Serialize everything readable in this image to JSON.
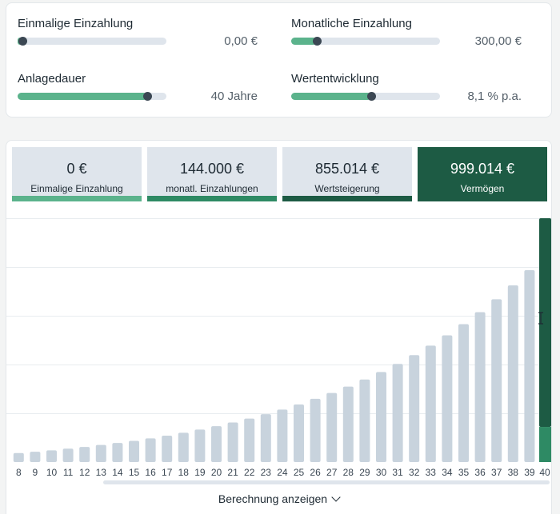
{
  "sliders": [
    {
      "label": "Einmalige Einzahlung",
      "value": "0,00 €",
      "level": 0.03
    },
    {
      "label": "Monatliche Einzahlung",
      "value": "300,00 €",
      "level": 0.17
    },
    {
      "label": "Anlagedauer",
      "value": "40 Jahre",
      "level": 0.87
    },
    {
      "label": "Wertentwicklung",
      "value": "8,1 % p.a.",
      "level": 0.54
    }
  ],
  "summary": [
    {
      "amount": "0 €",
      "caption": "Einmalige Einzahlung",
      "color": "#5bb38c"
    },
    {
      "amount": "144.000 €",
      "caption": "monatl. Einzahlungen",
      "color": "#2e8a64"
    },
    {
      "amount": "855.014 €",
      "caption": "Wertsteigerung",
      "color": "#1d5b44"
    },
    {
      "amount": "999.014 €",
      "caption": "Vermögen",
      "color": "#1d5b44"
    }
  ],
  "chart_data": {
    "type": "bar",
    "categories": [
      "8",
      "9",
      "10",
      "11",
      "12",
      "13",
      "14",
      "15",
      "16",
      "17",
      "18",
      "19",
      "20",
      "21",
      "22",
      "23",
      "24",
      "25",
      "26",
      "27",
      "28",
      "29",
      "30",
      "31",
      "32",
      "33",
      "34",
      "35",
      "36",
      "37",
      "38",
      "39",
      "40"
    ],
    "values": [
      37000,
      42000,
      48000,
      55000,
      62000,
      70000,
      78000,
      87000,
      97000,
      108000,
      120000,
      133000,
      147000,
      162000,
      178000,
      196000,
      215000,
      236000,
      259000,
      283000,
      309000,
      338000,
      369000,
      402000,
      438000,
      477000,
      519000,
      565000,
      614000,
      667000,
      724000,
      786000,
      999014
    ],
    "highlight_index": 32,
    "highlight_split": [
      144000,
      855014
    ],
    "ymax": 999014,
    "colors": {
      "bar": "#c8d3dd",
      "highlight_top": "#1d5b44",
      "highlight_bottom": "#2e8a64",
      "grid": "#e8ecef"
    }
  },
  "footer": {
    "show_calculation": "Berechnung anzeigen"
  }
}
